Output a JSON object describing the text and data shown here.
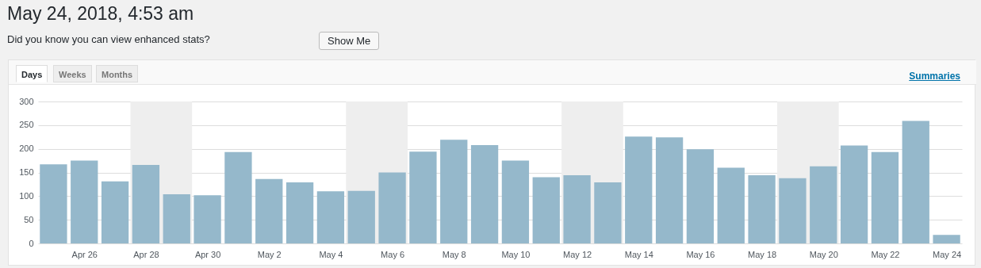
{
  "chart_data": {
    "type": "bar",
    "title": "May 24, 2018, 4:53 am",
    "subtitle": "Did you know you can view enhanced stats?",
    "annotations": [
      "Show Me",
      "Days",
      "Weeks",
      "Months",
      "Summaries"
    ],
    "x": [
      "--04-25",
      "--04-26",
      "--04-27",
      "--04-28",
      "--04-29",
      "--04-30",
      "--05-01",
      "--05-02",
      "--05-03",
      "--05-04",
      "--05-05",
      "--05-06",
      "--05-07",
      "--05-08",
      "--05-09",
      "--05-10",
      "--05-11",
      "--05-12",
      "--05-13",
      "--05-14",
      "--05-15",
      "--05-16",
      "--05-17",
      "--05-18",
      "--05-19",
      "--05-20",
      "--05-21",
      "--05-22",
      "--05-23",
      "--05-24"
    ],
    "values": [
      167,
      175,
      131,
      166,
      104,
      102,
      193,
      136,
      129,
      110,
      111,
      150,
      194,
      219,
      208,
      175,
      140,
      144,
      129,
      226,
      224,
      199,
      160,
      144,
      138,
      163,
      207,
      193,
      259,
      18
    ],
    "color": "#95b8cb",
    "xlim": [
      "--04-24T12:00",
      "--05-24T12:00"
    ],
    "xticks": [
      {
        "value": "--04-26",
        "label": "Apr 26"
      },
      {
        "value": "--04-28",
        "label": "Apr 28"
      },
      {
        "value": "--04-30",
        "label": "Apr 30"
      },
      {
        "value": "--05-02",
        "label": "May 2"
      },
      {
        "value": "--05-04",
        "label": "May 4"
      },
      {
        "value": "--05-06",
        "label": "May 6"
      },
      {
        "value": "--05-08",
        "label": "May 8"
      },
      {
        "value": "--05-10",
        "label": "May 10"
      },
      {
        "value": "--05-12",
        "label": "May 12"
      },
      {
        "value": "--05-14",
        "label": "May 14"
      },
      {
        "value": "--05-16",
        "label": "May 16"
      },
      {
        "value": "--05-18",
        "label": "May 18"
      },
      {
        "value": "--05-20",
        "label": "May 20"
      },
      {
        "value": "--05-22",
        "label": "May 22"
      },
      {
        "value": "--05-24",
        "label": "May 24"
      }
    ],
    "ylim": [
      0,
      300
    ],
    "yticks": [
      0,
      50,
      100,
      150,
      200,
      250,
      300
    ],
    "grid": "y",
    "bands": [
      {
        "axis": "x",
        "from": "--04-27T12:00",
        "to": "--04-29T12:00",
        "color": "#eeeeee"
      },
      {
        "axis": "x",
        "from": "--05-04T12:00",
        "to": "--05-06T12:00",
        "color": "#eeeeee"
      },
      {
        "axis": "x",
        "from": "--05-11T12:00",
        "to": "--05-13T12:00",
        "color": "#eeeeee"
      },
      {
        "axis": "x",
        "from": "--05-18T12:00",
        "to": "--05-20T12:00",
        "color": "#eeeeee"
      }
    ]
  }
}
